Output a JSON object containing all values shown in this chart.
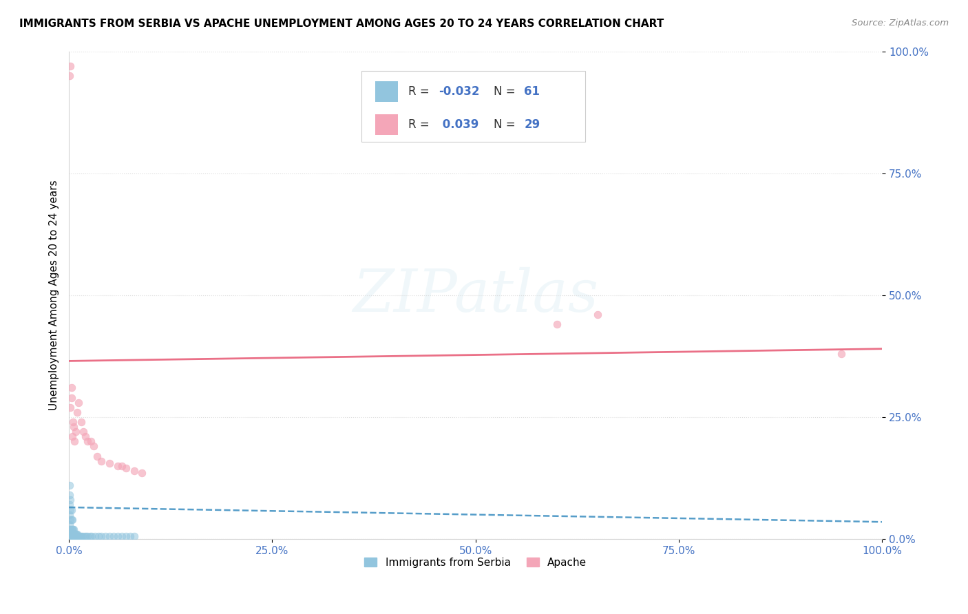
{
  "title": "IMMIGRANTS FROM SERBIA VS APACHE UNEMPLOYMENT AMONG AGES 20 TO 24 YEARS CORRELATION CHART",
  "source": "Source: ZipAtlas.com",
  "ylabel": "Unemployment Among Ages 20 to 24 years",
  "xlim": [
    0,
    1.0
  ],
  "ylim": [
    0,
    1.0
  ],
  "xticks": [
    0.0,
    0.25,
    0.5,
    0.75,
    1.0
  ],
  "yticks": [
    0.0,
    0.25,
    0.5,
    0.75,
    1.0
  ],
  "xticklabels": [
    "0.0%",
    "25.0%",
    "50.0%",
    "75.0%",
    "100.0%"
  ],
  "yticklabels": [
    "0.0%",
    "25.0%",
    "50.0%",
    "75.0%",
    "100.0%"
  ],
  "background_color": "#ffffff",
  "serbia_color": "#92c5de",
  "apache_color": "#f4a6b8",
  "serbia_line_color": "#4393c3",
  "apache_line_color": "#e8607a",
  "serbia_slope": -0.03,
  "serbia_intercept": 0.065,
  "apache_slope": 0.025,
  "apache_intercept": 0.365,
  "serbia_points_x": [
    0.001,
    0.001,
    0.001,
    0.001,
    0.001,
    0.001,
    0.001,
    0.001,
    0.001,
    0.002,
    0.002,
    0.002,
    0.002,
    0.002,
    0.002,
    0.003,
    0.003,
    0.003,
    0.003,
    0.003,
    0.004,
    0.004,
    0.004,
    0.004,
    0.005,
    0.005,
    0.005,
    0.006,
    0.006,
    0.006,
    0.007,
    0.007,
    0.008,
    0.008,
    0.009,
    0.009,
    0.01,
    0.01,
    0.012,
    0.013,
    0.014,
    0.015,
    0.017,
    0.019,
    0.021,
    0.023,
    0.026,
    0.028,
    0.032,
    0.036,
    0.04,
    0.045,
    0.05,
    0.055,
    0.06,
    0.065,
    0.07,
    0.075,
    0.08
  ],
  "serbia_points_y": [
    0.005,
    0.01,
    0.015,
    0.02,
    0.03,
    0.05,
    0.07,
    0.09,
    0.11,
    0.005,
    0.01,
    0.02,
    0.04,
    0.06,
    0.08,
    0.005,
    0.01,
    0.02,
    0.04,
    0.06,
    0.005,
    0.01,
    0.02,
    0.04,
    0.005,
    0.01,
    0.02,
    0.005,
    0.01,
    0.02,
    0.005,
    0.01,
    0.005,
    0.01,
    0.005,
    0.01,
    0.005,
    0.01,
    0.005,
    0.005,
    0.005,
    0.005,
    0.005,
    0.005,
    0.005,
    0.005,
    0.005,
    0.005,
    0.005,
    0.005,
    0.005,
    0.005,
    0.005,
    0.005,
    0.005,
    0.005,
    0.005,
    0.005,
    0.005
  ],
  "apache_points_x": [
    0.001,
    0.002,
    0.002,
    0.003,
    0.003,
    0.004,
    0.005,
    0.006,
    0.007,
    0.008,
    0.01,
    0.012,
    0.015,
    0.018,
    0.02,
    0.023,
    0.027,
    0.03,
    0.035,
    0.04,
    0.05,
    0.06,
    0.065,
    0.07,
    0.08,
    0.09,
    0.6,
    0.65,
    0.95
  ],
  "apache_points_y": [
    0.95,
    0.97,
    0.27,
    0.29,
    0.31,
    0.21,
    0.24,
    0.23,
    0.2,
    0.22,
    0.26,
    0.28,
    0.24,
    0.22,
    0.21,
    0.2,
    0.2,
    0.19,
    0.17,
    0.16,
    0.155,
    0.15,
    0.15,
    0.145,
    0.14,
    0.135,
    0.44,
    0.46,
    0.38
  ]
}
